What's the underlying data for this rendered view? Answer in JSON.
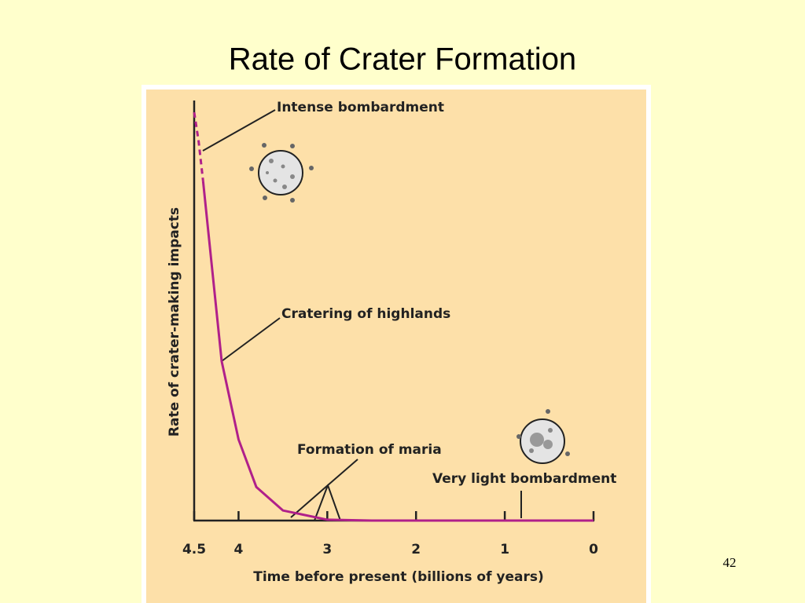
{
  "title": "Rate of Crater Formation",
  "page_number": "42",
  "chart_data": {
    "type": "line",
    "x_label": "Time before present (billions of years)",
    "y_label": "Rate of crater-making impacts",
    "xlim": [
      4.5,
      0
    ],
    "ylim": [
      0,
      100
    ],
    "xticks": [
      4.5,
      4,
      3,
      2,
      1,
      0
    ],
    "series": [
      {
        "color": "#b0208a",
        "dashed": true,
        "x": [
          4.5,
          4.45,
          4.4
        ],
        "values": [
          97.2,
          90.3,
          80.9
        ]
      },
      {
        "color": "#b0208a",
        "dashed": false,
        "x": [
          4.4,
          4.3,
          4.19,
          4.0,
          3.8,
          3.5,
          3.0,
          2.5,
          0
        ],
        "values": [
          80.9,
          60.4,
          37.9,
          19.3,
          8.0,
          2.4,
          0.2,
          0,
          0
        ]
      }
    ],
    "annotations": [
      "Intense bombardment",
      "Cratering of highlands",
      "Formation of maria",
      "Very light bombardment"
    ]
  }
}
